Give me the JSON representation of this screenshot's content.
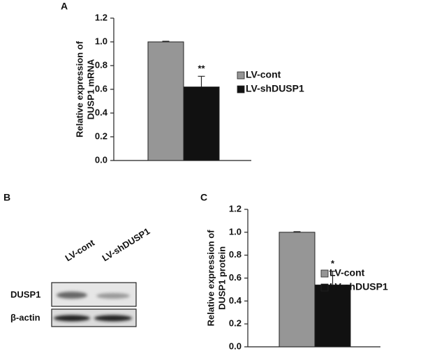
{
  "chart_data": [
    {
      "type": "bar",
      "panel": "A",
      "ylabel": [
        "Relative expression of",
        "DUSP1 mRNA"
      ],
      "ylim": [
        0,
        1.2
      ],
      "yticks": [
        {
          "value": 0,
          "label": "0.0"
        },
        {
          "value": 0.2,
          "label": "0.2"
        },
        {
          "value": 0.4,
          "label": "0.4"
        },
        {
          "value": 0.6,
          "label": "0.6"
        },
        {
          "value": 0.8,
          "label": "0.8"
        },
        {
          "value": 1.0,
          "label": "1.0"
        },
        {
          "value": 1.2,
          "label": "1.2"
        }
      ],
      "series": [
        {
          "name": "LV-cont",
          "color": "#969696",
          "values": [
            1.0
          ],
          "errors": [
            0.005
          ]
        },
        {
          "name": "LV-shDUSP1",
          "color": "#111111",
          "values": [
            0.62
          ],
          "errors": [
            0.09
          ],
          "significance": "**"
        }
      ]
    },
    {
      "type": "bar",
      "panel": "C",
      "ylabel": [
        "Relative expression of",
        "DUSP1 protein"
      ],
      "ylim": [
        0,
        1.2
      ],
      "yticks": [
        {
          "value": 0,
          "label": "0.0"
        },
        {
          "value": 0.2,
          "label": "0.2"
        },
        {
          "value": 0.4,
          "label": "0.4"
        },
        {
          "value": 0.6,
          "label": "0.6"
        },
        {
          "value": 0.8,
          "label": "0.8"
        },
        {
          "value": 1.0,
          "label": "1.0"
        },
        {
          "value": 1.2,
          "label": "1.2"
        }
      ],
      "series": [
        {
          "name": "LV-cont",
          "color": "#969696",
          "values": [
            1.0
          ],
          "errors": [
            0.005
          ]
        },
        {
          "name": "LV-shDUSP1",
          "color": "#111111",
          "values": [
            0.54
          ],
          "errors": [
            0.12
          ],
          "significance": "*"
        }
      ]
    }
  ],
  "blot": {
    "panel": "B",
    "lanes": [
      "LV-cont",
      "LV-shDUSP1"
    ],
    "rows": [
      "DUSP1",
      "β-actin"
    ]
  }
}
